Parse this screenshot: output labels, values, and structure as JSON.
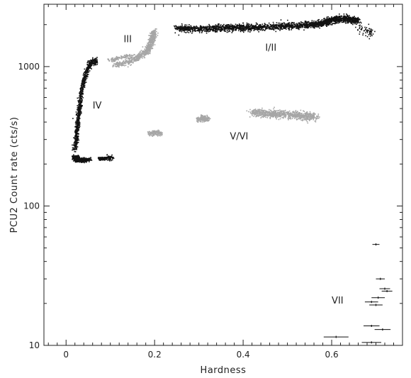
{
  "chart_data": {
    "type": "scatter",
    "title": "",
    "xlabel": "Hardness",
    "ylabel": "PCU2 Count rate (cts/s)",
    "xlim": [
      -0.05,
      0.76
    ],
    "ylim": [
      10,
      2800
    ],
    "y_scale": "log",
    "grid": false,
    "x_ticks": [
      {
        "value": 0,
        "label": "0"
      },
      {
        "value": 0.2,
        "label": "0.2"
      },
      {
        "value": 0.4,
        "label": "0.4"
      },
      {
        "value": 0.6,
        "label": "0.6"
      }
    ],
    "y_ticks": [
      {
        "value": 10,
        "label": "10"
      },
      {
        "value": 100,
        "label": "100"
      },
      {
        "value": 1000,
        "label": "1000"
      }
    ],
    "colors": {
      "dark": "#111111",
      "grey": "#a6a6a6"
    },
    "region_labels": [
      {
        "text": "III",
        "x": 0.13,
        "y": 1500
      },
      {
        "text": "I/II",
        "x": 0.45,
        "y": 1300
      },
      {
        "text": "IV",
        "x": 0.06,
        "y": 500
      },
      {
        "text": "V/VI",
        "x": 0.37,
        "y": 300
      },
      {
        "text": "VII",
        "x": 0.6,
        "y": 20
      }
    ],
    "clusters": [
      {
        "color": "dark",
        "n": 2200,
        "pts": [
          [
            0.25,
            1870
          ],
          [
            0.3,
            1870
          ],
          [
            0.35,
            1880
          ],
          [
            0.4,
            1900
          ],
          [
            0.45,
            1920
          ],
          [
            0.5,
            1950
          ],
          [
            0.55,
            2000
          ],
          [
            0.58,
            2050
          ],
          [
            0.6,
            2150
          ],
          [
            0.63,
            2200
          ],
          [
            0.66,
            2150
          ]
        ],
        "sx": 0.006,
        "sy": 0.035
      },
      {
        "color": "dark",
        "n": 60,
        "pts": [
          [
            0.66,
            1950
          ],
          [
            0.68,
            1800
          ],
          [
            0.69,
            1750
          ]
        ],
        "sx": 0.008,
        "sy": 0.05
      },
      {
        "color": "dark",
        "n": 900,
        "pts": [
          [
            0.02,
            250
          ],
          [
            0.023,
            300
          ],
          [
            0.025,
            350
          ],
          [
            0.027,
            420
          ],
          [
            0.03,
            500
          ],
          [
            0.033,
            600
          ],
          [
            0.037,
            700
          ],
          [
            0.043,
            850
          ],
          [
            0.05,
            1000
          ],
          [
            0.058,
            1080
          ],
          [
            0.07,
            1100
          ]
        ],
        "sx": 0.004,
        "sy": 0.03
      },
      {
        "color": "dark",
        "n": 600,
        "pts": [
          [
            0.02,
            225
          ],
          [
            0.025,
            215
          ],
          [
            0.035,
            212
          ],
          [
            0.05,
            215
          ]
        ],
        "sx": 0.006,
        "sy": 0.02
      },
      {
        "color": "dark",
        "n": 180,
        "pts": [
          [
            0.075,
            218
          ],
          [
            0.09,
            220
          ],
          [
            0.105,
            222
          ]
        ],
        "sx": 0.005,
        "sy": 0.02
      },
      {
        "color": "grey",
        "n": 700,
        "pts": [
          [
            0.11,
            1020
          ],
          [
            0.14,
            1080
          ],
          [
            0.16,
            1150
          ],
          [
            0.18,
            1260
          ],
          [
            0.19,
            1400
          ],
          [
            0.195,
            1600
          ],
          [
            0.2,
            1800
          ]
        ],
        "sx": 0.006,
        "sy": 0.03
      },
      {
        "color": "grey",
        "n": 120,
        "pts": [
          [
            0.1,
            1100
          ],
          [
            0.12,
            1160
          ],
          [
            0.15,
            1200
          ]
        ],
        "sx": 0.005,
        "sy": 0.02
      },
      {
        "color": "grey",
        "n": 150,
        "pts": [
          [
            0.19,
            330
          ],
          [
            0.2,
            335
          ],
          [
            0.215,
            330
          ]
        ],
        "sx": 0.006,
        "sy": 0.025
      },
      {
        "color": "grey",
        "n": 200,
        "pts": [
          [
            0.3,
            420
          ],
          [
            0.31,
            425
          ],
          [
            0.32,
            420
          ]
        ],
        "sx": 0.007,
        "sy": 0.03
      },
      {
        "color": "grey",
        "n": 800,
        "pts": [
          [
            0.42,
            470
          ],
          [
            0.45,
            462
          ],
          [
            0.48,
            455
          ],
          [
            0.51,
            450
          ],
          [
            0.54,
            440
          ],
          [
            0.56,
            435
          ]
        ],
        "sx": 0.01,
        "sy": 0.04
      }
    ],
    "error_points": [
      {
        "x": 0.7,
        "y": 53,
        "xerr": 0.008
      },
      {
        "x": 0.71,
        "y": 30,
        "xerr": 0.01
      },
      {
        "x": 0.72,
        "y": 25.5,
        "xerr": 0.012
      },
      {
        "x": 0.725,
        "y": 24.5,
        "xerr": 0.012
      },
      {
        "x": 0.705,
        "y": 22,
        "xerr": 0.015
      },
      {
        "x": 0.69,
        "y": 20.5,
        "xerr": 0.015
      },
      {
        "x": 0.7,
        "y": 19.5,
        "xerr": 0.015
      },
      {
        "x": 0.69,
        "y": 13.8,
        "xerr": 0.018
      },
      {
        "x": 0.715,
        "y": 13,
        "xerr": 0.018
      },
      {
        "x": 0.61,
        "y": 11.5,
        "xerr": 0.028
      },
      {
        "x": 0.69,
        "y": 10.5,
        "xerr": 0.022
      }
    ]
  }
}
